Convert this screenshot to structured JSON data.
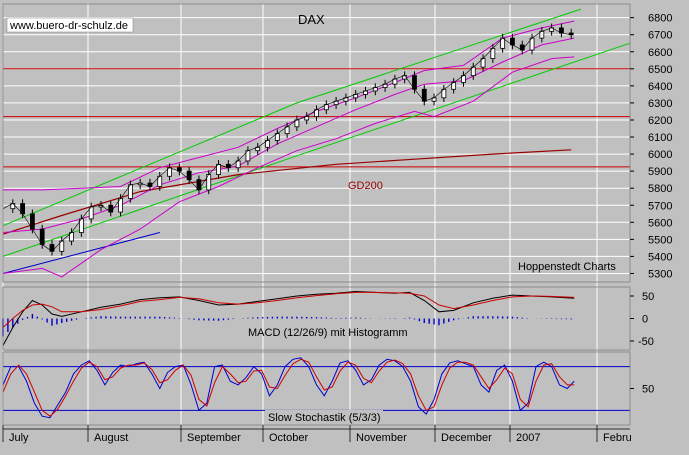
{
  "chart_data": {
    "type": "candlestick",
    "title": "DAX",
    "watermark": "www.buero-dr-schulz.de",
    "source_label": "Hoppenstedt Charts",
    "colors": {
      "background": "#c0c0c0",
      "grid": "#ffffff",
      "price": "#000000",
      "bollinger": "#cc00cc",
      "channel": "#00cc00",
      "support": "#cc0000",
      "gd200": "#990000",
      "macd": "#000000",
      "signal": "#cc0000",
      "histogram": "#0000cc",
      "stoch_k": "#0000cc",
      "stoch_d": "#cc0000",
      "stoch_bounds": "#0000cc"
    },
    "price_panel": {
      "ylim": [
        5250,
        6880
      ],
      "yticks": [
        5300,
        5400,
        5500,
        5600,
        5700,
        5800,
        5900,
        6000,
        6100,
        6200,
        6300,
        6400,
        6500,
        6600,
        6700,
        6800
      ],
      "horizontal_lines": [
        6500,
        6220,
        5925
      ],
      "gd200_label": "GD200",
      "gd200": [
        [
          0,
          5530
        ],
        [
          60,
          5640
        ],
        [
          140,
          5780
        ],
        [
          240,
          5880
        ],
        [
          340,
          5940
        ],
        [
          420,
          5970
        ],
        [
          500,
          6000
        ],
        [
          580,
          6025
        ]
      ],
      "channel_upper": [
        [
          0,
          5580
        ],
        [
          300,
          6300
        ],
        [
          590,
          6850
        ]
      ],
      "channel_lower": [
        [
          0,
          5400
        ],
        [
          300,
          5990
        ],
        [
          640,
          6650
        ]
      ],
      "channel_lower_short": [
        [
          0,
          5300
        ],
        [
          160,
          5540
        ]
      ],
      "bollinger_upper": [
        [
          0,
          5790
        ],
        [
          40,
          5790
        ],
        [
          80,
          5800
        ],
        [
          120,
          5810
        ],
        [
          160,
          5920
        ],
        [
          200,
          5980
        ],
        [
          240,
          6040
        ],
        [
          280,
          6150
        ],
        [
          320,
          6250
        ],
        [
          360,
          6330
        ],
        [
          400,
          6420
        ],
        [
          430,
          6490
        ],
        [
          470,
          6520
        ],
        [
          510,
          6680
        ],
        [
          550,
          6740
        ],
        [
          583,
          6780
        ]
      ],
      "bollinger_lower": [
        [
          0,
          5300
        ],
        [
          40,
          5330
        ],
        [
          60,
          5280
        ],
        [
          100,
          5440
        ],
        [
          140,
          5560
        ],
        [
          180,
          5720
        ],
        [
          220,
          5810
        ],
        [
          260,
          5920
        ],
        [
          300,
          6020
        ],
        [
          340,
          6090
        ],
        [
          380,
          6180
        ],
        [
          420,
          6250
        ],
        [
          440,
          6220
        ],
        [
          480,
          6310
        ],
        [
          520,
          6480
        ],
        [
          560,
          6560
        ],
        [
          583,
          6570
        ]
      ],
      "bollinger_mid": [
        [
          0,
          5540
        ],
        [
          40,
          5560
        ],
        [
          80,
          5620
        ],
        [
          120,
          5700
        ],
        [
          160,
          5820
        ],
        [
          200,
          5890
        ],
        [
          240,
          5930
        ],
        [
          280,
          6060
        ],
        [
          320,
          6160
        ],
        [
          360,
          6260
        ],
        [
          400,
          6350
        ],
        [
          430,
          6410
        ],
        [
          470,
          6430
        ],
        [
          510,
          6540
        ],
        [
          550,
          6640
        ],
        [
          583,
          6680
        ]
      ],
      "close_series": [
        [
          0,
          5680
        ],
        [
          10,
          5710
        ],
        [
          20,
          5650
        ],
        [
          30,
          5560
        ],
        [
          40,
          5470
        ],
        [
          50,
          5430
        ],
        [
          60,
          5490
        ],
        [
          70,
          5540
        ],
        [
          80,
          5620
        ],
        [
          90,
          5690
        ],
        [
          100,
          5700
        ],
        [
          110,
          5660
        ],
        [
          120,
          5740
        ],
        [
          130,
          5820
        ],
        [
          140,
          5830
        ],
        [
          150,
          5810
        ],
        [
          160,
          5870
        ],
        [
          170,
          5920
        ],
        [
          180,
          5900
        ],
        [
          190,
          5850
        ],
        [
          200,
          5790
        ],
        [
          210,
          5880
        ],
        [
          220,
          5940
        ],
        [
          230,
          5920
        ],
        [
          240,
          5960
        ],
        [
          250,
          6020
        ],
        [
          260,
          6040
        ],
        [
          270,
          6080
        ],
        [
          280,
          6120
        ],
        [
          290,
          6160
        ],
        [
          300,
          6200
        ],
        [
          310,
          6220
        ],
        [
          320,
          6260
        ],
        [
          330,
          6290
        ],
        [
          340,
          6310
        ],
        [
          350,
          6330
        ],
        [
          360,
          6350
        ],
        [
          370,
          6370
        ],
        [
          380,
          6390
        ],
        [
          390,
          6410
        ],
        [
          400,
          6440
        ],
        [
          410,
          6460
        ],
        [
          420,
          6380
        ],
        [
          430,
          6310
        ],
        [
          440,
          6330
        ],
        [
          450,
          6380
        ],
        [
          460,
          6420
        ],
        [
          470,
          6460
        ],
        [
          480,
          6510
        ],
        [
          490,
          6560
        ],
        [
          500,
          6620
        ],
        [
          510,
          6680
        ],
        [
          520,
          6640
        ],
        [
          530,
          6610
        ],
        [
          540,
          6680
        ],
        [
          550,
          6720
        ],
        [
          560,
          6740
        ],
        [
          570,
          6710
        ],
        [
          580,
          6700
        ]
      ]
    },
    "macd_panel": {
      "ylim": [
        -70,
        70
      ],
      "yticks": [
        50,
        0,
        -50
      ],
      "ytick_labels": [
        "50",
        "0",
        "-50"
      ],
      "label": "MACD (12/26/9) mit Histogramm",
      "macd": [
        [
          0,
          -60
        ],
        [
          10,
          -20
        ],
        [
          20,
          15
        ],
        [
          30,
          40
        ],
        [
          40,
          30
        ],
        [
          50,
          10
        ],
        [
          60,
          5
        ],
        [
          80,
          15
        ],
        [
          100,
          25
        ],
        [
          120,
          32
        ],
        [
          140,
          42
        ],
        [
          160,
          46
        ],
        [
          180,
          48
        ],
        [
          200,
          40
        ],
        [
          220,
          30
        ],
        [
          240,
          32
        ],
        [
          260,
          38
        ],
        [
          280,
          44
        ],
        [
          300,
          50
        ],
        [
          320,
          54
        ],
        [
          340,
          56
        ],
        [
          360,
          60
        ],
        [
          380,
          58
        ],
        [
          400,
          56
        ],
        [
          415,
          58
        ],
        [
          430,
          40
        ],
        [
          445,
          15
        ],
        [
          460,
          18
        ],
        [
          480,
          35
        ],
        [
          500,
          45
        ],
        [
          520,
          52
        ],
        [
          540,
          50
        ],
        [
          560,
          48
        ],
        [
          583,
          45
        ]
      ],
      "signal": [
        [
          0,
          -20
        ],
        [
          10,
          0
        ],
        [
          20,
          18
        ],
        [
          30,
          30
        ],
        [
          40,
          32
        ],
        [
          50,
          26
        ],
        [
          60,
          15
        ],
        [
          80,
          15
        ],
        [
          100,
          20
        ],
        [
          120,
          28
        ],
        [
          140,
          38
        ],
        [
          160,
          42
        ],
        [
          180,
          47
        ],
        [
          200,
          44
        ],
        [
          220,
          35
        ],
        [
          240,
          32
        ],
        [
          260,
          35
        ],
        [
          280,
          40
        ],
        [
          300,
          46
        ],
        [
          320,
          51
        ],
        [
          340,
          55
        ],
        [
          360,
          58
        ],
        [
          380,
          58
        ],
        [
          400,
          57
        ],
        [
          415,
          56
        ],
        [
          430,
          50
        ],
        [
          445,
          30
        ],
        [
          460,
          22
        ],
        [
          480,
          30
        ],
        [
          500,
          40
        ],
        [
          520,
          48
        ],
        [
          540,
          50
        ],
        [
          560,
          49
        ],
        [
          583,
          47
        ]
      ]
    },
    "stoch_panel": {
      "ylim": [
        0,
        100
      ],
      "bounds": [
        80,
        20
      ],
      "yticks": [
        50
      ],
      "ytick_labels": [
        "50"
      ],
      "label": "Slow Stochastik (5/3/3)",
      "k": [
        [
          0,
          55
        ],
        [
          8,
          80
        ],
        [
          16,
          80
        ],
        [
          24,
          60
        ],
        [
          32,
          30
        ],
        [
          40,
          12
        ],
        [
          48,
          10
        ],
        [
          56,
          28
        ],
        [
          64,
          45
        ],
        [
          72,
          70
        ],
        [
          80,
          82
        ],
        [
          88,
          88
        ],
        [
          96,
          75
        ],
        [
          104,
          55
        ],
        [
          112,
          72
        ],
        [
          120,
          82
        ],
        [
          128,
          80
        ],
        [
          136,
          84
        ],
        [
          144,
          86
        ],
        [
          152,
          70
        ],
        [
          160,
          50
        ],
        [
          168,
          72
        ],
        [
          176,
          80
        ],
        [
          184,
          82
        ],
        [
          192,
          55
        ],
        [
          200,
          20
        ],
        [
          208,
          30
        ],
        [
          216,
          80
        ],
        [
          224,
          82
        ],
        [
          232,
          60
        ],
        [
          240,
          55
        ],
        [
          248,
          65
        ],
        [
          256,
          80
        ],
        [
          264,
          70
        ],
        [
          272,
          40
        ],
        [
          280,
          55
        ],
        [
          288,
          80
        ],
        [
          296,
          90
        ],
        [
          304,
          92
        ],
        [
          312,
          80
        ],
        [
          320,
          55
        ],
        [
          328,
          40
        ],
        [
          336,
          60
        ],
        [
          344,
          85
        ],
        [
          352,
          88
        ],
        [
          360,
          75
        ],
        [
          368,
          55
        ],
        [
          376,
          62
        ],
        [
          384,
          82
        ],
        [
          392,
          90
        ],
        [
          400,
          88
        ],
        [
          408,
          80
        ],
        [
          416,
          60
        ],
        [
          424,
          25
        ],
        [
          432,
          15
        ],
        [
          440,
          35
        ],
        [
          448,
          70
        ],
        [
          456,
          85
        ],
        [
          464,
          88
        ],
        [
          472,
          84
        ],
        [
          480,
          80
        ],
        [
          488,
          55
        ],
        [
          496,
          45
        ],
        [
          504,
          75
        ],
        [
          512,
          82
        ],
        [
          520,
          60
        ],
        [
          528,
          20
        ],
        [
          536,
          30
        ],
        [
          544,
          80
        ],
        [
          552,
          86
        ],
        [
          560,
          80
        ],
        [
          568,
          55
        ],
        [
          576,
          50
        ],
        [
          583,
          60
        ]
      ],
      "d": [
        [
          0,
          45
        ],
        [
          8,
          70
        ],
        [
          16,
          82
        ],
        [
          24,
          70
        ],
        [
          32,
          45
        ],
        [
          40,
          20
        ],
        [
          48,
          12
        ],
        [
          56,
          22
        ],
        [
          64,
          40
        ],
        [
          72,
          60
        ],
        [
          80,
          78
        ],
        [
          88,
          86
        ],
        [
          96,
          80
        ],
        [
          104,
          62
        ],
        [
          112,
          66
        ],
        [
          120,
          78
        ],
        [
          128,
          82
        ],
        [
          136,
          82
        ],
        [
          144,
          85
        ],
        [
          152,
          76
        ],
        [
          160,
          58
        ],
        [
          168,
          62
        ],
        [
          176,
          75
        ],
        [
          184,
          82
        ],
        [
          192,
          68
        ],
        [
          200,
          35
        ],
        [
          208,
          26
        ],
        [
          216,
          58
        ],
        [
          224,
          80
        ],
        [
          232,
          70
        ],
        [
          240,
          58
        ],
        [
          248,
          60
        ],
        [
          256,
          74
        ],
        [
          264,
          75
        ],
        [
          272,
          52
        ],
        [
          280,
          50
        ],
        [
          288,
          68
        ],
        [
          296,
          84
        ],
        [
          304,
          90
        ],
        [
          312,
          86
        ],
        [
          320,
          66
        ],
        [
          328,
          48
        ],
        [
          336,
          52
        ],
        [
          344,
          74
        ],
        [
          352,
          86
        ],
        [
          360,
          82
        ],
        [
          368,
          64
        ],
        [
          376,
          58
        ],
        [
          384,
          74
        ],
        [
          392,
          86
        ],
        [
          400,
          89
        ],
        [
          408,
          84
        ],
        [
          416,
          70
        ],
        [
          424,
          40
        ],
        [
          432,
          20
        ],
        [
          440,
          25
        ],
        [
          448,
          55
        ],
        [
          456,
          78
        ],
        [
          464,
          86
        ],
        [
          472,
          86
        ],
        [
          480,
          82
        ],
        [
          488,
          66
        ],
        [
          496,
          50
        ],
        [
          504,
          62
        ],
        [
          512,
          78
        ],
        [
          520,
          70
        ],
        [
          528,
          35
        ],
        [
          536,
          25
        ],
        [
          544,
          60
        ],
        [
          552,
          82
        ],
        [
          560,
          84
        ],
        [
          568,
          66
        ],
        [
          576,
          55
        ],
        [
          583,
          55
        ]
      ]
    },
    "x_axis": {
      "labels": [
        "July",
        "August",
        "September",
        "October",
        "November",
        "December",
        "2007",
        "Febru"
      ]
    }
  }
}
